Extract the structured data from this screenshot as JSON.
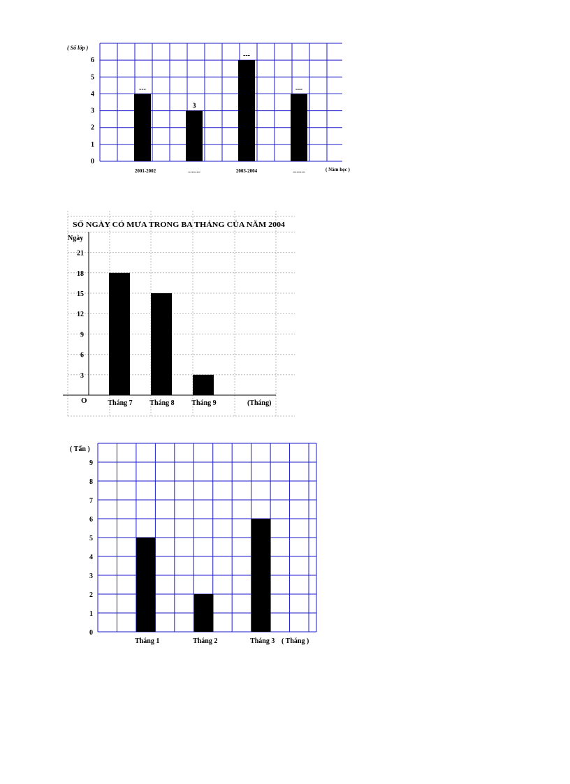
{
  "chart_data": [
    {
      "type": "bar",
      "ylabel": "( Số lớp )",
      "xlabel": "( Năm học )",
      "yticks": [
        "0",
        "1",
        "2",
        "3",
        "4",
        "5",
        "6"
      ],
      "categories": [
        "2001-2002",
        "..........",
        "2003-2004",
        ".........."
      ],
      "values": [
        4,
        3,
        6,
        4
      ],
      "data_labels": [
        "---",
        "3",
        "---",
        "---"
      ],
      "ylim": [
        0,
        6
      ],
      "grid": true,
      "grid_color": "#1a1acc",
      "bar_color": "#000000"
    },
    {
      "type": "bar",
      "title": "SỐ NGÀY CÓ MƯA TRONG BA THÁNG CỦA NĂM 2004",
      "ylabel": "Ngày",
      "xlabel": "(Tháng)",
      "origin_label": "O",
      "yticks": [
        "3",
        "6",
        "9",
        "12",
        "15",
        "18",
        "21"
      ],
      "categories": [
        "Tháng 7",
        "Tháng 8",
        "Tháng 9"
      ],
      "values": [
        18,
        15,
        3
      ],
      "ylim": [
        0,
        21
      ],
      "grid": true,
      "grid_color": "#bbbbbb",
      "bar_color": "#000000"
    },
    {
      "type": "bar",
      "ylabel": "( Tấn )",
      "xlabel": "( Tháng )",
      "yticks": [
        "0",
        "1",
        "2",
        "3",
        "4",
        "5",
        "6",
        "7",
        "8",
        "9"
      ],
      "categories": [
        "Tháng 1",
        "Tháng 2",
        "Tháng 3"
      ],
      "values": [
        5,
        2,
        6
      ],
      "ylim": [
        0,
        9
      ],
      "grid": true,
      "grid_color": "#1a1acc",
      "bar_color": "#000000"
    }
  ]
}
